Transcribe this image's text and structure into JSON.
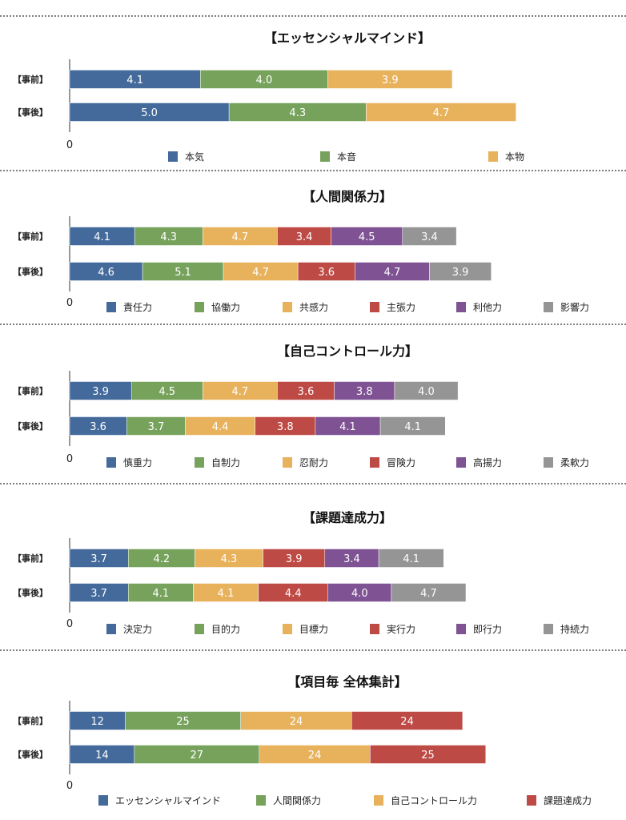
{
  "colors": {
    "blue": "#436a9b",
    "green": "#77a25c",
    "yellow": "#e8b25c",
    "red": "#be4a45",
    "purple": "#7e5293",
    "gray": "#959595"
  },
  "chart_data": [
    {
      "type": "bar",
      "orientation": "horizontal",
      "stacked": true,
      "title": "【エッセンシャルマインド】",
      "categories": [
        "【事前】",
        "【事後】"
      ],
      "xlim": [
        0,
        17.4
      ],
      "x_tick_labels": [
        "0"
      ],
      "grid": false,
      "legend": "bottom",
      "series": [
        {
          "name": "本気",
          "color": "#436a9b",
          "values": [
            4.1,
            5.0
          ]
        },
        {
          "name": "本音",
          "color": "#77a25c",
          "values": [
            4.0,
            4.3
          ]
        },
        {
          "name": "本物",
          "color": "#e8b25c",
          "values": [
            3.9,
            4.7
          ]
        }
      ]
    },
    {
      "type": "bar",
      "orientation": "horizontal",
      "stacked": true,
      "title": "【人間関係力】",
      "categories": [
        "【事前】",
        "【事後】"
      ],
      "xlim": [
        0,
        35
      ],
      "x_tick_labels": [
        "0"
      ],
      "grid": false,
      "legend": "bottom",
      "series": [
        {
          "name": "責任力",
          "color": "#436a9b",
          "values": [
            4.1,
            4.6
          ]
        },
        {
          "name": "協働力",
          "color": "#77a25c",
          "values": [
            4.3,
            5.1
          ]
        },
        {
          "name": "共感力",
          "color": "#e8b25c",
          "values": [
            4.7,
            4.7
          ]
        },
        {
          "name": "主張力",
          "color": "#be4a45",
          "values": [
            3.4,
            3.6
          ]
        },
        {
          "name": "利他力",
          "color": "#7e5293",
          "values": [
            4.5,
            4.7
          ]
        },
        {
          "name": "影響力",
          "color": "#959595",
          "values": [
            3.4,
            3.9
          ]
        }
      ]
    },
    {
      "type": "bar",
      "orientation": "horizontal",
      "stacked": true,
      "title": "【自己コントロール力】",
      "categories": [
        "【事前】",
        "【事後】"
      ],
      "xlim": [
        0,
        35
      ],
      "x_tick_labels": [
        "0"
      ],
      "grid": false,
      "legend": "bottom",
      "series": [
        {
          "name": "慎重力",
          "color": "#436a9b",
          "values": [
            3.9,
            3.6
          ]
        },
        {
          "name": "自制力",
          "color": "#77a25c",
          "values": [
            4.5,
            3.7
          ]
        },
        {
          "name": "忍耐力",
          "color": "#e8b25c",
          "values": [
            4.7,
            4.4
          ]
        },
        {
          "name": "冒険力",
          "color": "#be4a45",
          "values": [
            3.6,
            3.8
          ]
        },
        {
          "name": "高揚力",
          "color": "#7e5293",
          "values": [
            3.8,
            4.1
          ]
        },
        {
          "name": "柔軟力",
          "color": "#959595",
          "values": [
            4.0,
            4.1
          ]
        }
      ]
    },
    {
      "type": "bar",
      "orientation": "horizontal",
      "stacked": true,
      "title": "【課題達成力】",
      "categories": [
        "【事前】",
        "【事後】"
      ],
      "xlim": [
        0,
        35
      ],
      "x_tick_labels": [
        "0"
      ],
      "grid": false,
      "legend": "bottom",
      "series": [
        {
          "name": "決定力",
          "color": "#436a9b",
          "values": [
            3.7,
            3.7
          ]
        },
        {
          "name": "目的力",
          "color": "#77a25c",
          "values": [
            4.2,
            4.1
          ]
        },
        {
          "name": "目標力",
          "color": "#e8b25c",
          "values": [
            4.3,
            4.1
          ]
        },
        {
          "name": "実行力",
          "color": "#be4a45",
          "values": [
            3.9,
            4.4
          ]
        },
        {
          "name": "即行力",
          "color": "#7e5293",
          "values": [
            3.4,
            4.0
          ]
        },
        {
          "name": "持続力",
          "color": "#959595",
          "values": [
            4.1,
            4.7
          ]
        }
      ]
    },
    {
      "type": "bar",
      "orientation": "horizontal",
      "stacked": true,
      "title": "【項目毎 全体集計】",
      "categories": [
        "【事前】",
        "【事後】"
      ],
      "xlim": [
        0,
        120
      ],
      "x_tick_labels": [
        "0"
      ],
      "grid": false,
      "legend": "bottom",
      "series": [
        {
          "name": "エッセンシャルマインド",
          "color": "#436a9b",
          "values": [
            12,
            14
          ]
        },
        {
          "name": "人間関係力",
          "color": "#77a25c",
          "values": [
            25,
            27
          ]
        },
        {
          "name": "自己コントロール力",
          "color": "#e8b25c",
          "values": [
            24,
            24
          ]
        },
        {
          "name": "課題達成力",
          "color": "#be4a45",
          "values": [
            24,
            25
          ]
        }
      ]
    }
  ]
}
